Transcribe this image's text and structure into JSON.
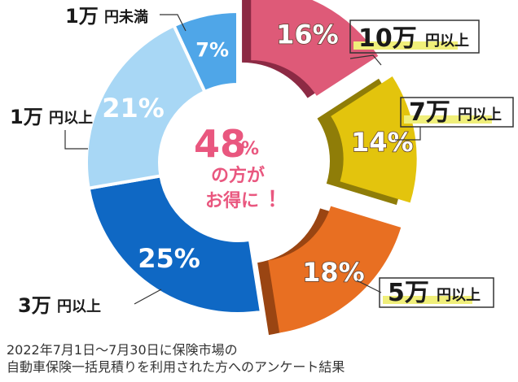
{
  "chart_data": {
    "type": "pie",
    "center": {
      "value": "48",
      "unit": "%",
      "line1": "の方が",
      "line2": "お得に",
      "exclaim": "！"
    },
    "slices": [
      {
        "label": "10万",
        "unit": "円以上",
        "value": 16,
        "value_text": "16%",
        "color": "#de5a78",
        "side_color": "#8c2a44",
        "exploded": true,
        "highlight": true
      },
      {
        "label": "7万",
        "unit": "円以上",
        "value": 14,
        "value_text": "14%",
        "color": "#e3c40d",
        "side_color": "#8f7d08",
        "exploded": true,
        "highlight": true
      },
      {
        "label": "5万",
        "unit": "円以上",
        "value": 18,
        "value_text": "18%",
        "color": "#e86f22",
        "side_color": "#9a4512",
        "exploded": true,
        "highlight": true
      },
      {
        "label": "3万",
        "unit": "円以上",
        "value": 25,
        "value_text": "25%",
        "color": "#0f68c4",
        "exploded": false,
        "highlight": false
      },
      {
        "label": "1万",
        "unit": "円以上",
        "value": 21,
        "value_text": "21%",
        "color": "#a8d7f5",
        "exploded": false,
        "highlight": false
      },
      {
        "label": "1万",
        "unit": "円未満",
        "value": 7,
        "value_text": "7%",
        "color": "#4fa6e8",
        "exploded": false,
        "highlight": false
      }
    ],
    "highlight_color": "#f0ef7a"
  },
  "footnote": {
    "line1": "2022年7月1日〜7月30日に保険市場の",
    "line2": "自動車保険一括見積りを利用された方へのアンケート結果"
  }
}
